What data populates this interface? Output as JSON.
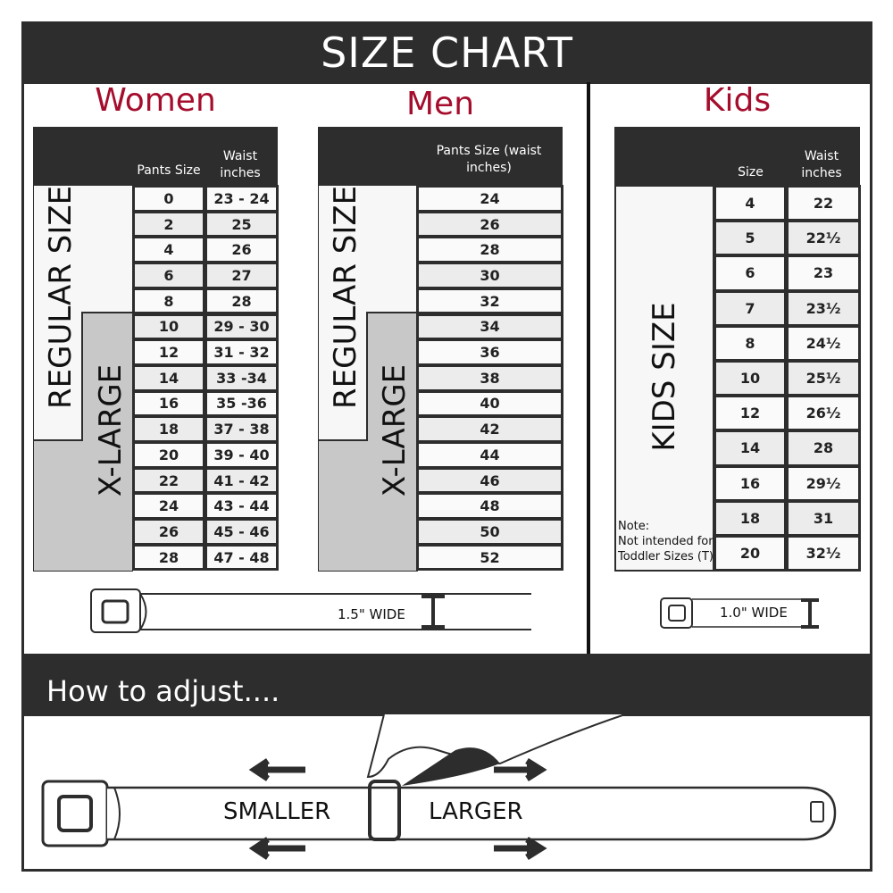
{
  "title": "SIZE CHART",
  "colors": {
    "accent": "#a50d2d",
    "dark": "#2d2d2d",
    "xlarge_fill": "#c8c8c8"
  },
  "women": {
    "title": "Women",
    "col1": "Pants Size",
    "col2": "Waist inches",
    "regular_label": "REGULAR SIZE",
    "xlarge_label": "X-LARGE",
    "rows": [
      [
        "0",
        "23 - 24"
      ],
      [
        "2",
        "25"
      ],
      [
        "4",
        "26"
      ],
      [
        "6",
        "27"
      ],
      [
        "8",
        "28"
      ],
      [
        "10",
        "29 - 30"
      ],
      [
        "12",
        "31 - 32"
      ],
      [
        "14",
        "33 -34"
      ],
      [
        "16",
        "35 -36"
      ],
      [
        "18",
        "37 - 38"
      ],
      [
        "20",
        "39 - 40"
      ],
      [
        "22",
        "41 - 42"
      ],
      [
        "24",
        "43 - 44"
      ],
      [
        "26",
        "45 - 46"
      ],
      [
        "28",
        "47 - 48"
      ]
    ]
  },
  "men": {
    "title": "Men",
    "col1": "Pants Size (waist inches)",
    "regular_label": "REGULAR SIZE",
    "xlarge_label": "X-LARGE",
    "rows": [
      "24",
      "26",
      "28",
      "30",
      "32",
      "34",
      "36",
      "38",
      "40",
      "42",
      "44",
      "46",
      "48",
      "50",
      "52"
    ]
  },
  "kids": {
    "title": "Kids",
    "col1": "Size",
    "col2": "Waist inches",
    "label": "KIDS SIZE",
    "note_title": "Note:",
    "note_line1": "Not intended for",
    "note_line2": "Toddler Sizes (T)",
    "rows": [
      [
        "4",
        "22"
      ],
      [
        "5",
        "22½"
      ],
      [
        "6",
        "23"
      ],
      [
        "7",
        "23½"
      ],
      [
        "8",
        "24½"
      ],
      [
        "10",
        "25½"
      ],
      [
        "12",
        "26½"
      ],
      [
        "14",
        "28"
      ],
      [
        "16",
        "29½"
      ],
      [
        "18",
        "31"
      ],
      [
        "20",
        "32½"
      ]
    ]
  },
  "adult_width": "1.5\" WIDE",
  "kids_width": "1.0\" WIDE",
  "adjust": {
    "title": "How to adjust....",
    "smaller": "SMALLER",
    "larger": "LARGER"
  }
}
